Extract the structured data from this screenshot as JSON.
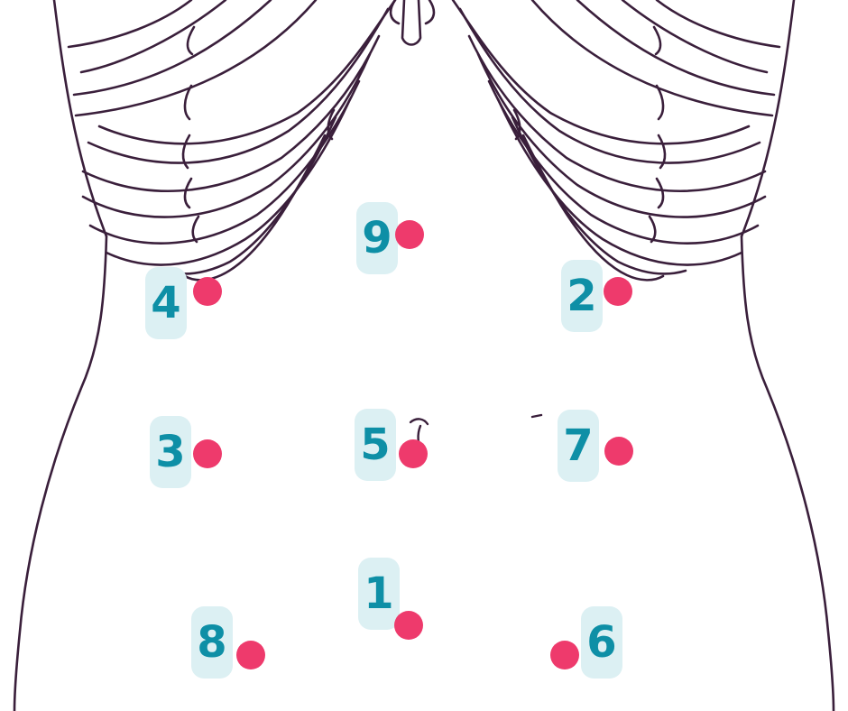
{
  "colors": {
    "outline": "#3a1f3b",
    "badge_bg": "#dcf0f3",
    "badge_text": "#0e8fa6",
    "dot": "#ee3a6c"
  },
  "figure": {
    "icon": "torso-ribcage-outline-icon"
  },
  "markers": [
    {
      "id": "9",
      "label": "9"
    },
    {
      "id": "4",
      "label": "4"
    },
    {
      "id": "2",
      "label": "2"
    },
    {
      "id": "3",
      "label": "3"
    },
    {
      "id": "5",
      "label": "5"
    },
    {
      "id": "7",
      "label": "7"
    },
    {
      "id": "1",
      "label": "1"
    },
    {
      "id": "8",
      "label": "8"
    },
    {
      "id": "6",
      "label": "6"
    }
  ]
}
